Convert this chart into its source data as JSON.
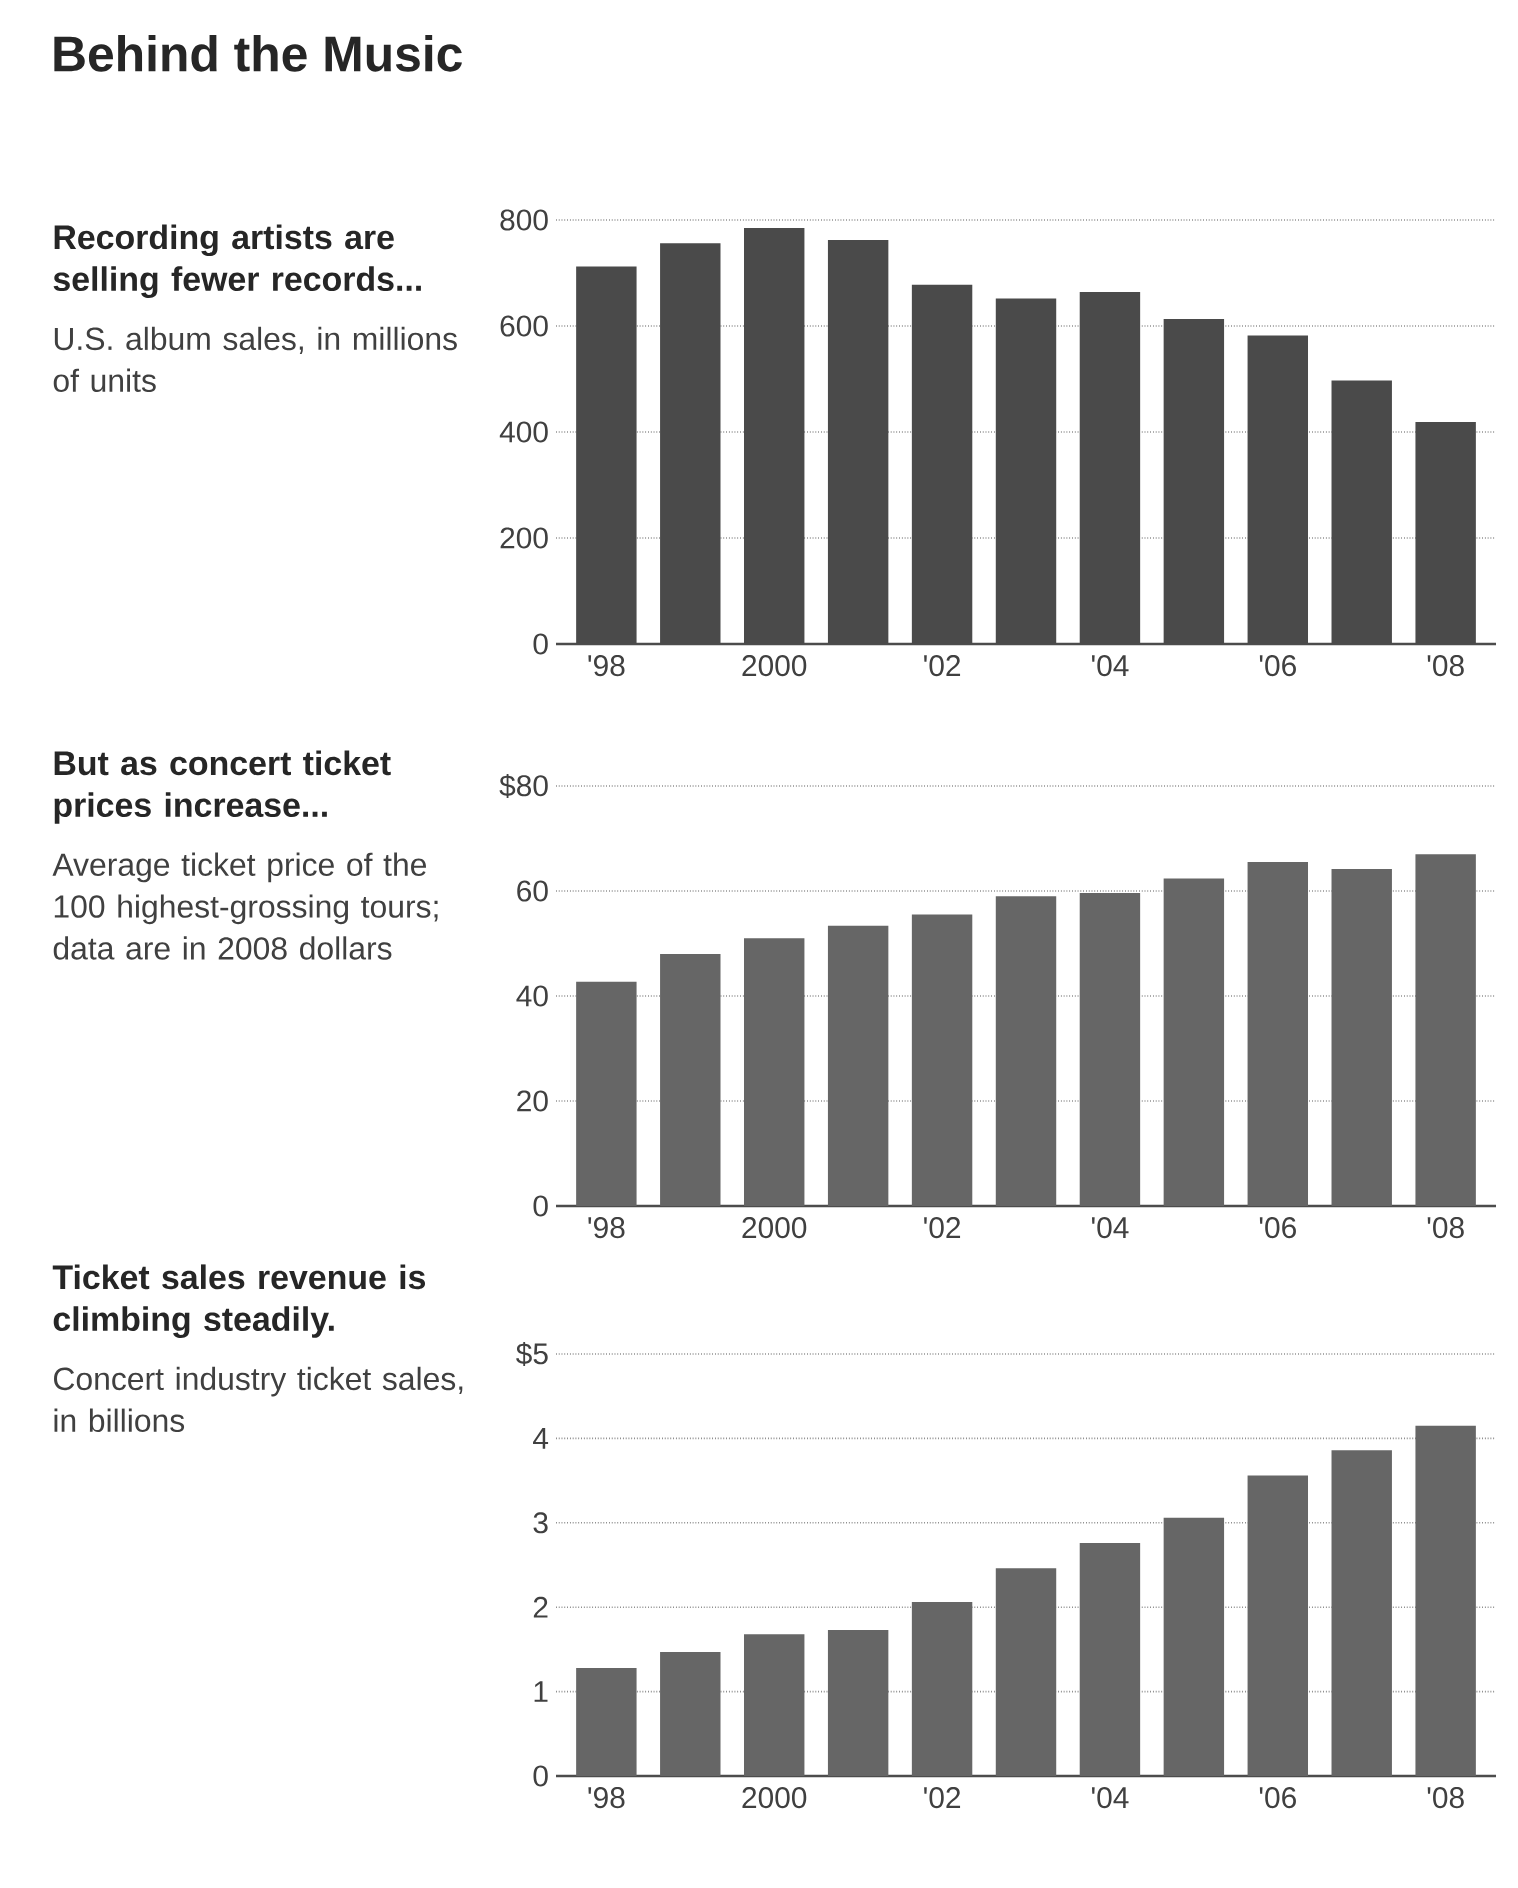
{
  "chart_data": [
    {
      "type": "bar",
      "title": "Behind the Music",
      "subtitle": "Recording artists are selling fewer records...",
      "ylabel": "U.S. album sales, in millions of units",
      "categories": [
        "'98",
        null,
        "2000",
        null,
        "'02",
        null,
        "'04",
        null,
        "'06",
        null,
        "'08"
      ],
      "values": [
        712,
        756,
        785,
        762,
        678,
        652,
        664,
        613,
        582,
        497,
        419
      ],
      "color": "#4a4a4a",
      "ylim": [
        0,
        800
      ],
      "yticks": [
        0,
        200,
        400,
        600,
        800
      ],
      "grid": "y"
    },
    {
      "type": "bar",
      "subtitle": "But as concert ticket prices increase...",
      "ylabel": "Average ticket price of the 100 highest-grossing tours; data are in 2008 dollars",
      "categories": [
        "'98",
        null,
        "2000",
        null,
        "'02",
        null,
        "'04",
        null,
        "'06",
        null,
        "'08"
      ],
      "values": [
        42.7,
        48.0,
        51.0,
        53.4,
        55.5,
        59.0,
        59.6,
        62.4,
        65.5,
        64.2,
        67.0
      ],
      "color": "#666666",
      "ylim": [
        0,
        80
      ],
      "yticks": [
        0,
        20,
        40,
        60,
        {
          "value": 80,
          "label": "$80"
        }
      ],
      "grid": "y"
    },
    {
      "type": "bar",
      "subtitle": "Ticket sales revenue is climbing steadily.",
      "ylabel": "Concert industry ticket sales, in billions",
      "categories": [
        "'98",
        null,
        "2000",
        null,
        "'02",
        null,
        "'04",
        null,
        "'06",
        null,
        "'08"
      ],
      "values": [
        1.28,
        1.47,
        1.68,
        1.73,
        2.06,
        2.46,
        2.76,
        3.06,
        3.56,
        3.86,
        4.15
      ],
      "color": "#666666",
      "ylim": [
        0,
        5
      ],
      "yticks": [
        0,
        1,
        2,
        3,
        4,
        {
          "value": 5,
          "label": "$5"
        }
      ],
      "grid": "y"
    }
  ]
}
